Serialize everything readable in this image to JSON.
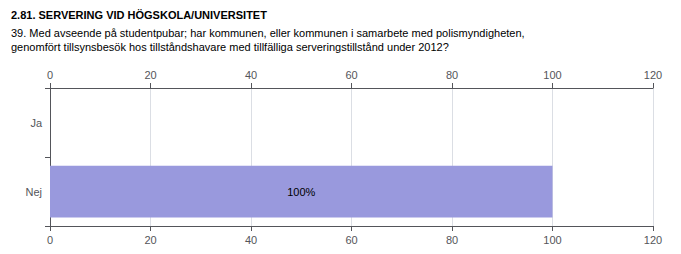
{
  "chart_data": {
    "type": "bar",
    "orientation": "horizontal",
    "title": "2.81. SERVERING VID HÖGSKOLA/UNIVERSITET",
    "subtitle": [
      "39. Med avseende på studentpubar; har kommunen, eller kommunen i samarbete med polismyndigheten,",
      "genomfört tillsynsbesök hos tillståndshavare med tillfälliga serveringstillstånd under 2012?"
    ],
    "categories": [
      "Nej",
      "Ja"
    ],
    "values": [
      100,
      0
    ],
    "value_labels": [
      "100%",
      null
    ],
    "data_labels": true,
    "color": "#9999dd",
    "xlim": [
      0,
      120
    ],
    "xticks": [
      0,
      20,
      40,
      60,
      80,
      100,
      120
    ],
    "grid": true
  }
}
